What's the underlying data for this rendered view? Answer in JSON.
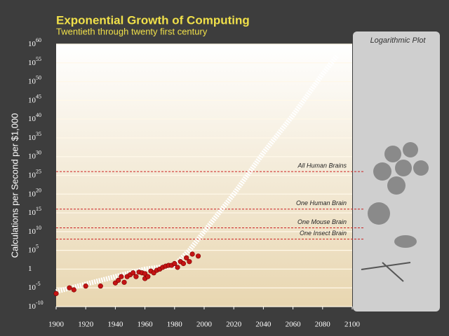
{
  "chart_data": {
    "type": "scatter",
    "title": "Exponential Growth of Computing",
    "subtitle": "Twentieth through twenty first century",
    "y_label": "Calculations per Second per $1,000",
    "panel_title": "Logarithmic Plot",
    "log_scale": true,
    "grid": true,
    "color": "#c41414",
    "x": [
      1900,
      1909,
      1912,
      1920,
      1930,
      1940,
      1942,
      1944,
      1946,
      1948,
      1950,
      1952,
      1954,
      1956,
      1958,
      1960,
      1960,
      1962,
      1964,
      1966,
      1968,
      1970,
      1972,
      1974,
      1976,
      1978,
      1980,
      1982,
      1984,
      1986,
      1988,
      1990,
      1992,
      1996
    ],
    "values": [
      3e-07,
      1e-05,
      3e-06,
      3e-05,
      3e-05,
      0.0002,
      0.001,
      0.01,
      0.0003,
      0.01,
      0.03,
      0.1,
      0.01,
      0.16,
      0.1,
      0.06,
      0.003,
      0.01,
      0.3,
      0.1,
      0.5,
      1,
      3,
      6,
      10,
      10,
      30,
      3,
      100,
      30,
      1000,
      100,
      10000,
      3000
    ],
    "curve": {
      "x": [
        1900,
        1920,
        1940,
        1960,
        1980,
        1990,
        2000,
        2020,
        2040,
        2060,
        2080,
        2090
      ],
      "values": [
        1e-06,
        0.0001,
        0.01,
        1,
        10,
        100000.0,
        10000000000.0,
        1e+20,
        1e+31,
        1e+41,
        1e+52,
        1e+57
      ]
    },
    "annotations": [
      {
        "text": "All Human Brains",
        "value": 1e+26
      },
      {
        "text": "One Human Brain",
        "value": 1e+16
      },
      {
        "text": "One Mouse Brain",
        "value": 100000000000.0
      },
      {
        "text": "One Insect Brain",
        "value": 100000000.0
      }
    ],
    "xlim": [
      1900,
      2100
    ],
    "xticks": [
      1900,
      1920,
      1940,
      1960,
      1980,
      2000,
      2020,
      2040,
      2060,
      2080,
      2100
    ],
    "ylim": [
      1e-10,
      1e+60
    ],
    "yticks": [
      {
        "value": 1e-10,
        "label": "10^-10"
      },
      {
        "value": 1e-05,
        "label": "10^-5"
      },
      1,
      {
        "value": 100000.0,
        "label": "10^5"
      },
      {
        "value": 10000000000.0,
        "label": "10^10"
      },
      {
        "value": 1000000000000000.0,
        "label": "10^15"
      },
      {
        "value": 1e+20,
        "label": "10^20"
      },
      {
        "value": 1e+25,
        "label": "10^25"
      },
      {
        "value": 1e+30,
        "label": "10^30"
      },
      {
        "value": 1e+35,
        "label": "10^35"
      },
      {
        "value": 1e+40,
        "label": "10^40"
      },
      {
        "value": 1e+45,
        "label": "10^45"
      },
      {
        "value": 1e+50,
        "label": "10^50"
      },
      {
        "value": 1e+55,
        "label": "10^55"
      },
      {
        "value": 1e+60,
        "label": "10^60"
      }
    ]
  }
}
